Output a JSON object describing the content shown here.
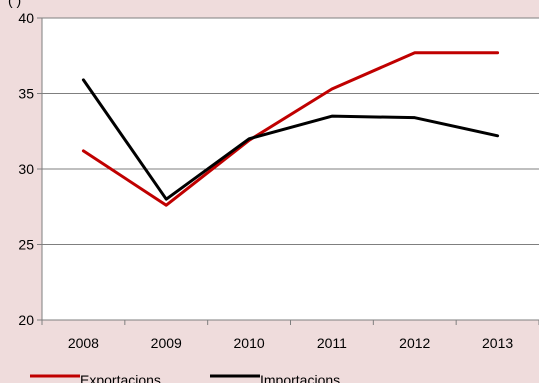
{
  "chart_data": {
    "type": "line",
    "title_fragment": "(                    )",
    "categories": [
      "2008",
      "2009",
      "2010",
      "2011",
      "2012",
      "2013"
    ],
    "ylim": [
      20,
      40
    ],
    "yticks": [
      "20",
      "25",
      "30",
      "35",
      "40"
    ],
    "grid": "horizontal",
    "legend_position": "bottom-left",
    "series": [
      {
        "name": "Exportacions",
        "color": "#c00000",
        "values": [
          31.2,
          27.6,
          31.9,
          35.3,
          37.7,
          37.7
        ]
      },
      {
        "name": "Importacions",
        "color": "#000000",
        "values": [
          35.9,
          28.0,
          32.0,
          33.5,
          33.4,
          32.2
        ]
      }
    ],
    "background": "#efdcdc",
    "plot_background": "#ffffff"
  }
}
